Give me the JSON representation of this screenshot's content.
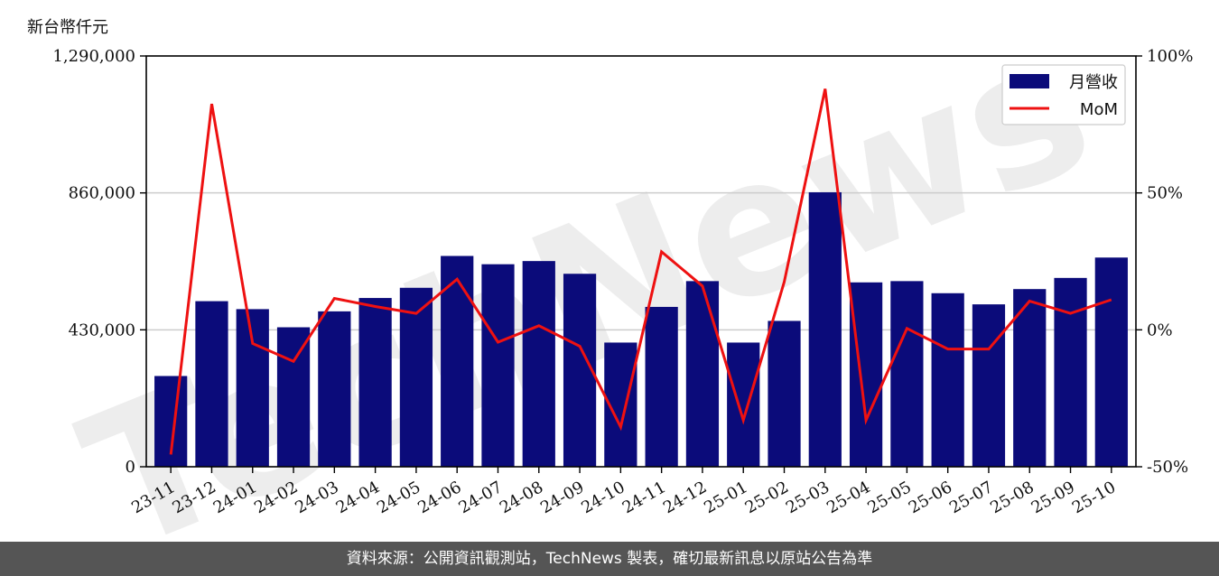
{
  "unit_label": "新台幣仟元",
  "footer_text": "資料來源：公開資訊觀測站，TechNews 製表，確切最新訊息以原站公告為準",
  "watermark_text": "TechNews",
  "colors": {
    "bar": "#0b0b7a",
    "line": "#ee1111",
    "grid": "#cccccc",
    "footer_bg": "#555555"
  },
  "chart_data": {
    "type": "bar",
    "categories": [
      "23-11",
      "23-12",
      "24-01",
      "24-02",
      "24-03",
      "24-04",
      "24-05",
      "24-06",
      "24-07",
      "24-08",
      "24-09",
      "24-10",
      "24-11",
      "24-12",
      "25-01",
      "25-02",
      "25-03",
      "25-04",
      "25-05",
      "25-06",
      "25-07",
      "25-08",
      "25-09",
      "25-10"
    ],
    "series": [
      {
        "name": "月營收",
        "type": "bar",
        "axis": "left",
        "values": [
          285000,
          520000,
          495000,
          438000,
          488000,
          530000,
          562000,
          662000,
          636000,
          646000,
          606000,
          390000,
          502000,
          583000,
          390000,
          458000,
          862000,
          579000,
          583000,
          545000,
          510000,
          558000,
          593000,
          657000
        ]
      },
      {
        "name": "MoM",
        "type": "line",
        "axis": "right",
        "values": [
          -45.5,
          82.5,
          -5.0,
          -11.5,
          11.5,
          8.5,
          6.0,
          18.5,
          -4.5,
          1.5,
          -6.0,
          -35.5,
          28.5,
          16.0,
          -33.0,
          17.5,
          88.0,
          -33.0,
          0.5,
          -7.0,
          -7.0,
          10.5,
          6.0,
          11.0
        ]
      }
    ],
    "y_left": {
      "min": 0,
      "max": 1290000,
      "ticks": [
        0,
        430000,
        860000,
        1290000
      ],
      "tick_labels": [
        "0",
        "430,000",
        "860,000",
        "1,290,000"
      ]
    },
    "y_right": {
      "min": -50,
      "max": 100,
      "ticks": [
        -50,
        0,
        50,
        100
      ],
      "tick_labels": [
        "-50%",
        "0%",
        "50%",
        "100%"
      ]
    },
    "grid": true,
    "legend_position": "top-right"
  }
}
